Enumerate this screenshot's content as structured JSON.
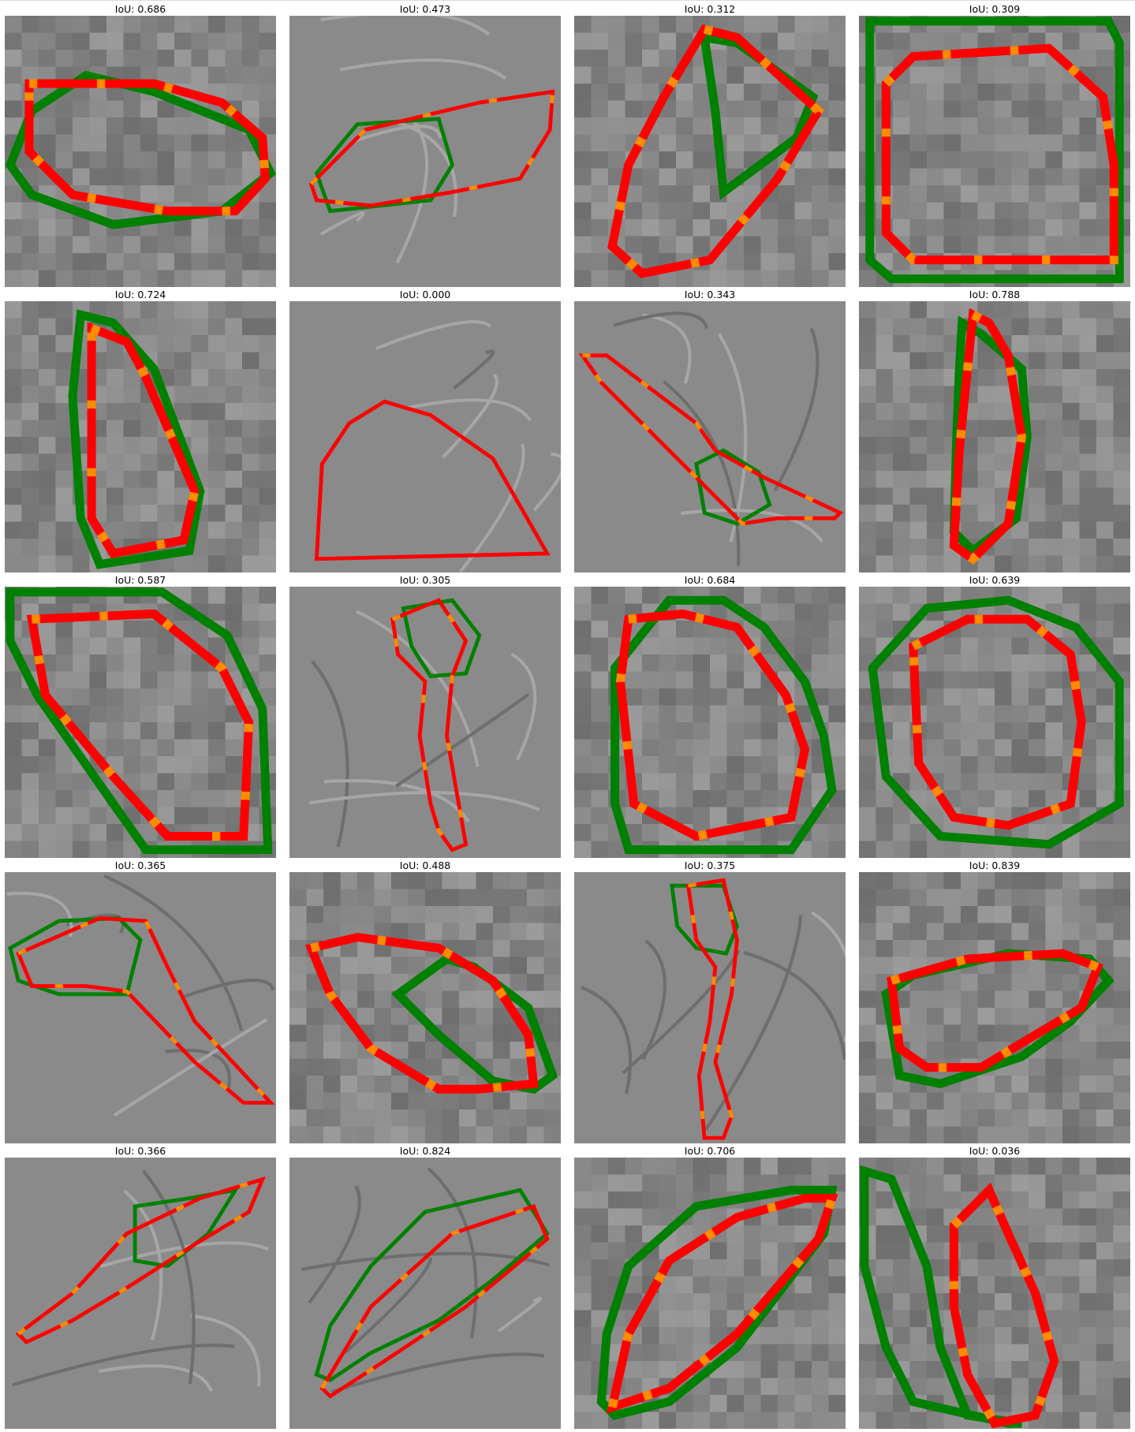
{
  "figure": {
    "panels": [
      {
        "title": "IoU: 0.686"
      },
      {
        "title": "IoU: 0.473"
      },
      {
        "title": "IoU: 0.312"
      },
      {
        "title": "IoU: 0.309"
      },
      {
        "title": "IoU: 0.724"
      },
      {
        "title": "IoU: 0.000"
      },
      {
        "title": "IoU: 0.343"
      },
      {
        "title": "IoU: 0.788"
      },
      {
        "title": "IoU: 0.587"
      },
      {
        "title": "IoU: 0.305"
      },
      {
        "title": "IoU: 0.684"
      },
      {
        "title": "IoU: 0.639"
      },
      {
        "title": "IoU: 0.365"
      },
      {
        "title": "IoU: 0.488"
      },
      {
        "title": "IoU: 0.375"
      },
      {
        "title": "IoU: 0.839"
      },
      {
        "title": "IoU: 0.366"
      },
      {
        "title": "IoU: 0.824"
      },
      {
        "title": "IoU: 0.706"
      },
      {
        "title": "IoU: 0.036"
      }
    ],
    "colors": {
      "ground_truth": "#008000",
      "prediction": "#ff0000",
      "overlap": "#ff8c00",
      "background": "#808080"
    }
  }
}
